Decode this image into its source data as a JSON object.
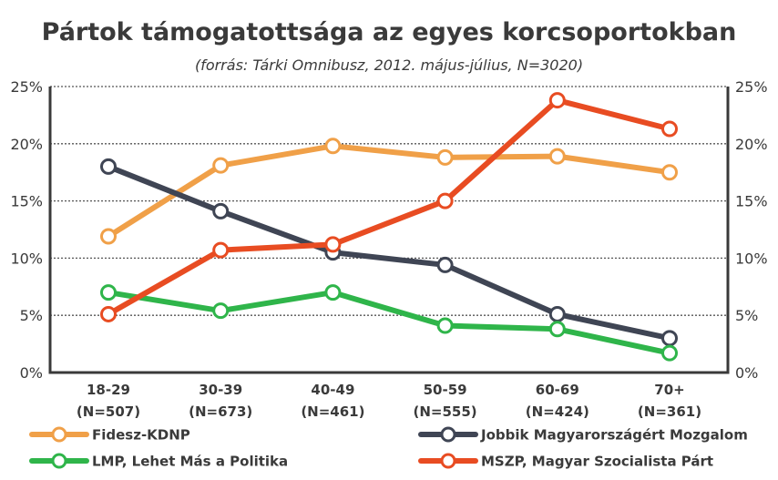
{
  "chart_data": {
    "type": "line",
    "title": "Pártok támogatottsága az egyes korcsoportokban",
    "subtitle": "(forrás: Tárki Omnibusz, 2012. május-július, N=3020)",
    "xlabel": "",
    "ylabel": "",
    "categories": [
      [
        "18-29",
        "(N=507)"
      ],
      [
        "30-39",
        "(N=673)"
      ],
      [
        "40-49",
        "(N=461)"
      ],
      [
        "50-59",
        "(N=555)"
      ],
      [
        "60-69",
        "(N=424)"
      ],
      [
        "70+",
        "(N=361)"
      ]
    ],
    "y_ticks": [
      "0%",
      "5%",
      "10%",
      "15%",
      "20%",
      "25%"
    ],
    "ylim": [
      0,
      25
    ],
    "grid": true,
    "legend_position": "bottom",
    "series": [
      {
        "name": "Fidesz-KDNP",
        "color": "#f0a048",
        "values": [
          11.9,
          18.1,
          19.8,
          18.8,
          18.9,
          17.5
        ]
      },
      {
        "name": "Jobbik Magyarországért Mozgalom",
        "color": "#3f4554",
        "values": [
          18.0,
          14.1,
          10.5,
          9.4,
          5.1,
          3.0
        ]
      },
      {
        "name": "LMP, Lehet Más a Politika",
        "color": "#2fb54a",
        "values": [
          7.0,
          5.4,
          7.0,
          4.1,
          3.8,
          1.7
        ]
      },
      {
        "name": "MSZP, Magyar Szocialista Párt",
        "color": "#e84c22",
        "values": [
          5.1,
          10.7,
          11.2,
          15.0,
          23.8,
          21.3
        ]
      }
    ]
  }
}
